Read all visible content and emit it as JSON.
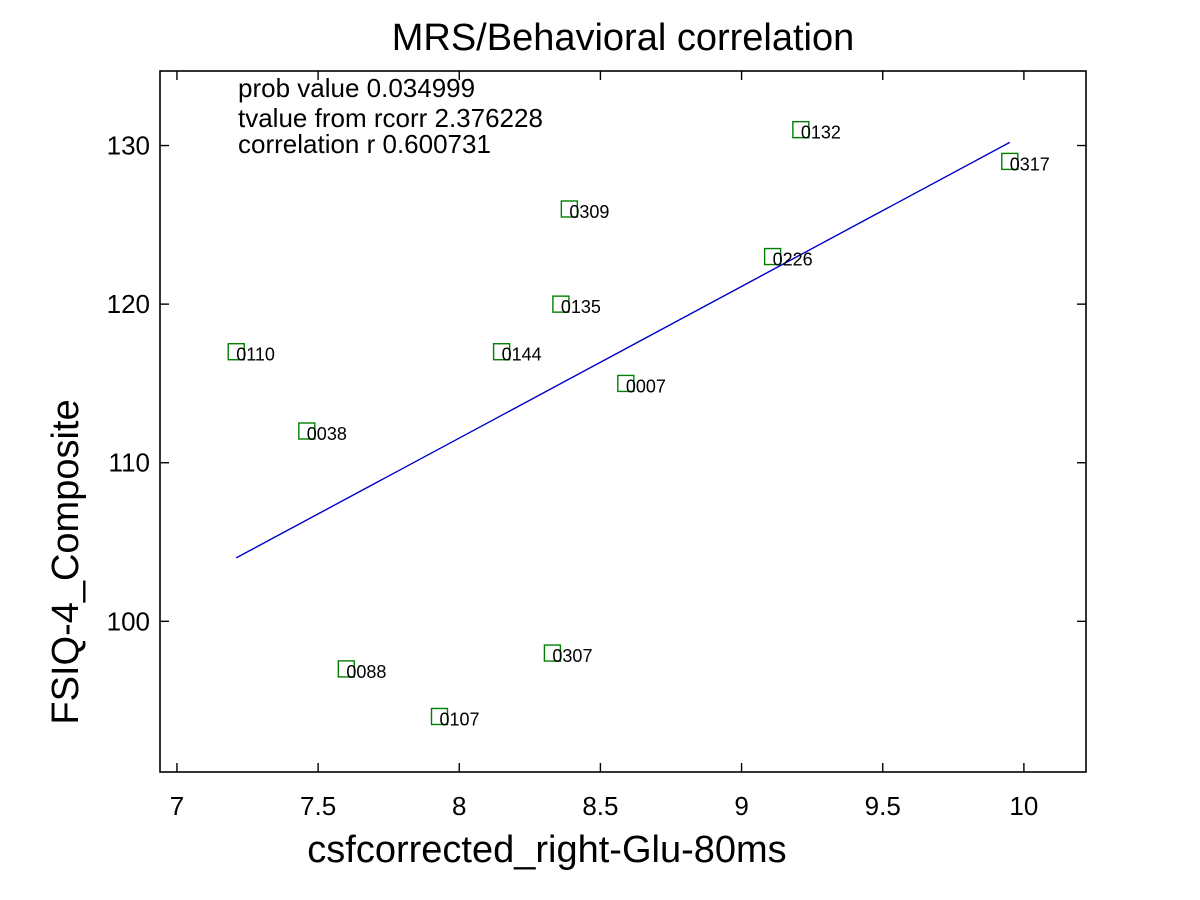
{
  "chart_data": {
    "type": "scatter",
    "title": "MRS/Behavioral correlation",
    "xlabel": "csfcorrected_right-Glu-80ms",
    "ylabel": "FSIQ-4_Composite",
    "xlim": [
      6.94,
      10.22
    ],
    "ylim": [
      90.5,
      134.7
    ],
    "x_ticks": [
      7,
      7.5,
      8,
      8.5,
      9,
      9.5,
      10
    ],
    "y_ticks": [
      100,
      110,
      120,
      130
    ],
    "grid": false,
    "marker_color": "#008000",
    "fit_color": "#0000cc",
    "stats": [
      "prob value 0.034999",
      "tvalue from rcorr 2.376228",
      "correlation r 0.600731"
    ],
    "points": [
      {
        "label": "0132",
        "x": 9.21,
        "y": 131
      },
      {
        "label": "0317",
        "x": 9.95,
        "y": 129
      },
      {
        "label": "0309",
        "x": 8.39,
        "y": 126
      },
      {
        "label": "0226",
        "x": 9.11,
        "y": 123
      },
      {
        "label": "0135",
        "x": 8.36,
        "y": 120
      },
      {
        "label": "0110",
        "x": 7.21,
        "y": 117
      },
      {
        "label": "0144",
        "x": 8.15,
        "y": 117
      },
      {
        "label": "0007",
        "x": 8.59,
        "y": 115
      },
      {
        "label": "0038",
        "x": 7.46,
        "y": 112
      },
      {
        "label": "0307",
        "x": 8.33,
        "y": 98
      },
      {
        "label": "0088",
        "x": 7.6,
        "y": 97
      },
      {
        "label": "0107",
        "x": 7.93,
        "y": 94
      }
    ],
    "fit_line": {
      "x": [
        7.21,
        9.95
      ],
      "y": [
        104.0,
        130.2
      ]
    }
  }
}
